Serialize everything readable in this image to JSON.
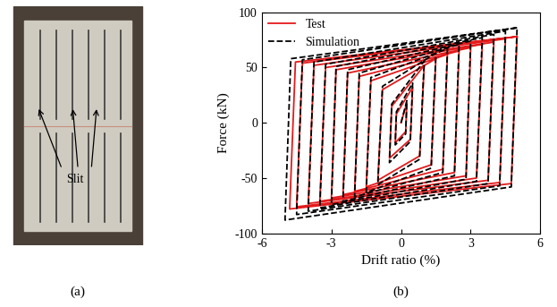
{
  "chart_data": {
    "type": "line",
    "caption": "(b)",
    "x_label": "Drift ratio (%)",
    "y_label": "Force (kN)",
    "xlim": [
      -6,
      6
    ],
    "xticks": [
      -6,
      -3,
      0,
      3,
      6
    ],
    "ylim": [
      -100,
      100
    ],
    "yticks": [
      -100,
      -50,
      0,
      50,
      100
    ],
    "legend": "upper left",
    "grid": false,
    "series": [
      {
        "name": "Test",
        "color": "#e41a1c",
        "line_style": "solid",
        "x": [
          0,
          0.25,
          0.2,
          -0.25,
          -0.2,
          0.5,
          0.4,
          -0.5,
          -0.4,
          1,
          0.8,
          -1,
          -0.8,
          1.5,
          1.3,
          -1.5,
          -1.3,
          2,
          1.8,
          -2,
          -1.8,
          2.5,
          2.3,
          -2.5,
          -2.3,
          3,
          2.8,
          -3,
          -2.8,
          3.5,
          3.25,
          -3.5,
          -3.25,
          4,
          3.75,
          -4,
          -3.75,
          4.5,
          4.25,
          -4.5,
          -4.25,
          5,
          4.75,
          -4.8,
          -4.55,
          5
        ],
        "y": [
          0,
          18,
          -8,
          -18,
          8,
          32,
          -15,
          -32,
          15,
          52,
          -30,
          -52,
          30,
          58,
          -38,
          -58,
          38,
          62,
          -42,
          -62,
          42,
          65,
          -45,
          -65,
          45,
          68,
          -48,
          -68,
          48,
          71,
          -50,
          -71,
          50,
          73,
          -52,
          -73,
          52,
          76,
          -54,
          -76,
          54,
          78,
          -55,
          -78,
          55,
          78
        ]
      },
      {
        "name": "Simulation",
        "color": "#000000",
        "line_style": "dashed",
        "x": [
          0,
          0.25,
          0.2,
          -0.25,
          -0.2,
          0.5,
          0.4,
          -0.5,
          -0.4,
          1,
          0.8,
          -1,
          -0.8,
          1.5,
          1.3,
          -1.5,
          -1.3,
          2,
          1.8,
          -2,
          -1.8,
          2.5,
          2.3,
          -2.5,
          -2.3,
          3,
          2.8,
          -3,
          -2.8,
          3.5,
          3.25,
          -3.5,
          -3.25,
          4,
          3.75,
          -4,
          -3.75,
          4.5,
          4.25,
          -4.5,
          -4.25,
          5,
          4.75,
          -5,
          -4.75,
          5
        ],
        "y": [
          0,
          20,
          -10,
          -20,
          10,
          36,
          -17,
          -36,
          17,
          56,
          -33,
          -56,
          33,
          63,
          -41,
          -63,
          41,
          67,
          -45,
          -67,
          45,
          71,
          -48,
          -71,
          48,
          74,
          -51,
          -74,
          51,
          77,
          -53,
          -77,
          53,
          80,
          -55,
          -80,
          55,
          83,
          -57,
          -83,
          57,
          86,
          -58,
          -88,
          58,
          86
        ]
      }
    ]
  },
  "photo": {
    "caption": "(a)",
    "annotation": "Slit"
  }
}
